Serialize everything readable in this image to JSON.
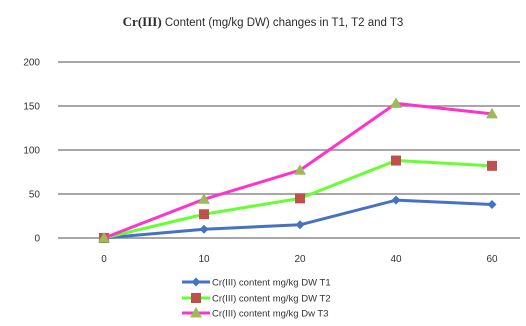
{
  "chart_data": {
    "type": "line",
    "title_strong": "Cr(III)",
    "title_rest": "Content (mg/kg DW) changes in T1, T2 and T3",
    "xlabel": "",
    "ylabel": "",
    "categories": [
      "0",
      "10",
      "20",
      "40",
      "60"
    ],
    "ylim": [
      0,
      200
    ],
    "yticks": [
      "0",
      "50",
      "100",
      "150",
      "200"
    ],
    "grid": true,
    "legend_position": "bottom",
    "series": [
      {
        "name": "Cr(III) content mg/kg DW T1",
        "color": "#4472C4",
        "marker": "diamond",
        "values": [
          0,
          10,
          15,
          43,
          38
        ]
      },
      {
        "name": "Cr(III) content mg/kg DW T2",
        "color": "#C0504D",
        "line_color": "#66FF33",
        "marker": "square",
        "values": [
          0,
          27,
          45,
          88,
          82
        ]
      },
      {
        "name": "Cr(III) content mg/kg Dw T3",
        "color": "#9BBB59",
        "line_color": "#FF33CC",
        "marker": "triangle",
        "values": [
          0,
          44,
          77,
          153,
          141
        ]
      }
    ]
  }
}
